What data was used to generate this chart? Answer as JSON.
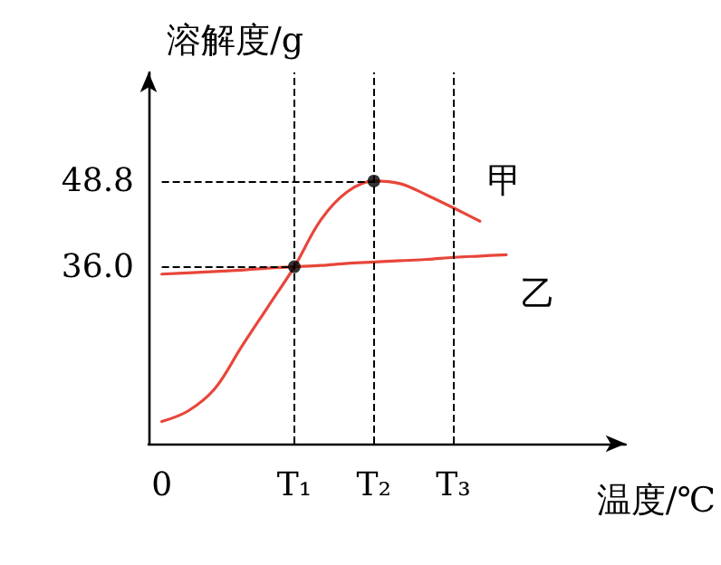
{
  "chart_data": {
    "type": "line",
    "xlabel": "温度/℃",
    "ylabel": "溶解度/g",
    "categories": [
      "0",
      null,
      null,
      null,
      null,
      "T₁",
      null,
      null,
      "T₂",
      null,
      null,
      "T₃",
      null,
      null,
      null,
      null,
      null,
      null
    ],
    "ylim": [
      9.6,
      65
    ],
    "yticks": [
      {
        "value": 36.0,
        "label": "36.0"
      },
      {
        "value": 48.8,
        "label": "48.8"
      }
    ],
    "series": [
      {
        "name": "甲",
        "color": "#e8463a",
        "values": [
          12.9,
          14.5,
          17.8,
          24.0,
          30.0,
          36.0,
          43.0,
          47.2,
          48.8,
          48.4,
          46.7,
          44.8,
          42.8,
          null,
          null,
          null,
          null,
          null
        ]
      },
      {
        "name": "乙",
        "color": "#e8463a",
        "values": [
          34.9,
          35.1,
          35.3,
          35.5,
          35.8,
          36.0,
          36.2,
          36.5,
          36.7,
          36.9,
          37.1,
          37.4,
          37.6,
          37.8,
          null,
          null,
          null,
          null
        ]
      },
      {
        "type": "scatter",
        "marker": "circle",
        "color": "#000000",
        "values": [
          null,
          null,
          null,
          null,
          null,
          36.0,
          null,
          null,
          48.8,
          null,
          null,
          null,
          null,
          null,
          null,
          null,
          null,
          null
        ]
      }
    ],
    "ref_lines": [
      {
        "axis": "y",
        "value": 36.0
      },
      {
        "axis": "y",
        "value": 48.8
      },
      {
        "axis": "x",
        "value": "T₁"
      },
      {
        "axis": "x",
        "value": "T₂"
      },
      {
        "axis": "x",
        "value": "T₃"
      }
    ],
    "marker": "none",
    "line_style": "solid",
    "grid": false,
    "legend": false
  }
}
